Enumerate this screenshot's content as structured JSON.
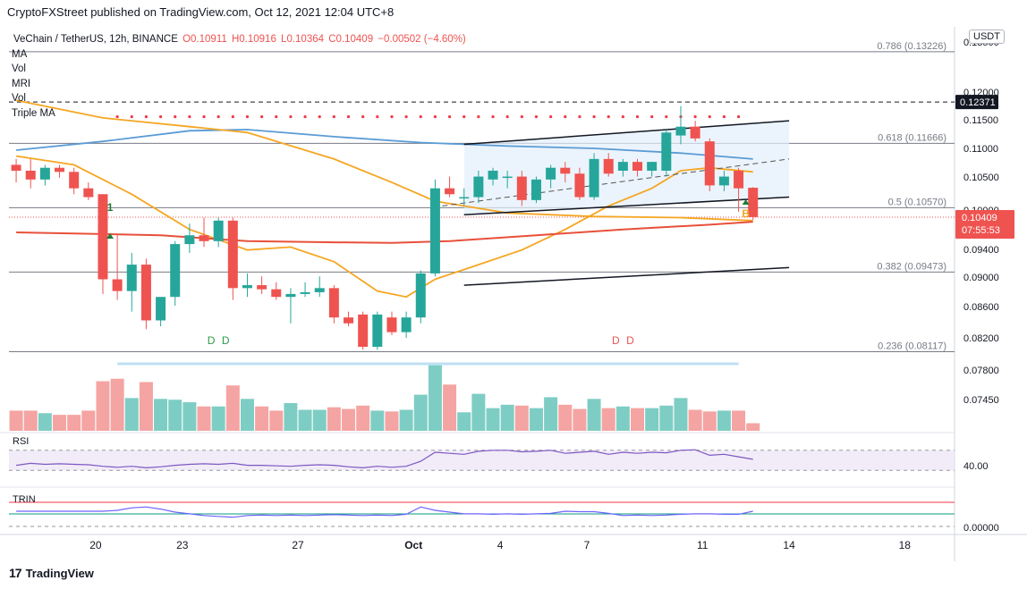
{
  "header": {
    "text": "CryptoFXStreet published on TradingView.com, Oct 12, 2021 12:04 UTC+8"
  },
  "legend": {
    "symbol": "VeChain / TetherUS, 12h, BINANCE",
    "open": "O0.10911",
    "high": "H0.10916",
    "low": "L0.10364",
    "close": "C0.10409",
    "change": "−0.00502 (−4.60%)",
    "indicators": [
      "MA",
      "Vol",
      "MRI",
      "Vol",
      "Triple MA"
    ]
  },
  "currency_button": "USDT",
  "footer": {
    "brand": "TradingView",
    "logo_glyph": "17"
  },
  "colors": {
    "up": "#26a69a",
    "down": "#ef5350",
    "ma_blue": "#5b9bd5",
    "ma_orange": "#f5a623",
    "ma_red": "#e8503a",
    "rsi": "#7e57c2"
  },
  "chart_data": {
    "type": "candlestick",
    "title": "VeChain / TetherUS, 12h, BINANCE",
    "ylim": [
      0.0683,
      0.1356
    ],
    "y_ticks": [
      "0.13500",
      "0.12000",
      "0.11500",
      "0.11000",
      "0.10500",
      "0.10000",
      "0.09400",
      "0.09000",
      "0.08600",
      "0.08200",
      "0.07800",
      "0.07450"
    ],
    "x_labels": [
      {
        "label": "20",
        "i": 5.5
      },
      {
        "label": "23",
        "i": 11.5
      },
      {
        "label": "27",
        "i": 19.5
      },
      {
        "label": "Oct",
        "i": 27.5
      },
      {
        "label": "4",
        "i": 33.5
      },
      {
        "label": "7",
        "i": 39.5
      },
      {
        "label": "11",
        "i": 47.5
      },
      {
        "label": "14",
        "i": 53.5
      },
      {
        "label": "18",
        "i": 61.5
      }
    ],
    "ohlc": [
      [
        0.113,
        0.114,
        0.11,
        0.112
      ],
      [
        0.112,
        0.114,
        0.109,
        0.1105
      ],
      [
        0.1105,
        0.113,
        0.1095,
        0.1125
      ],
      [
        0.1125,
        0.113,
        0.1108,
        0.1118
      ],
      [
        0.1118,
        0.1125,
        0.108,
        0.109
      ],
      [
        0.109,
        0.11,
        0.107,
        0.1075
      ],
      [
        0.108,
        0.108,
        0.091,
        0.0935
      ],
      [
        0.0935,
        0.101,
        0.09,
        0.0915
      ],
      [
        0.0915,
        0.098,
        0.088,
        0.096
      ],
      [
        0.096,
        0.097,
        0.085,
        0.0865
      ],
      [
        0.0865,
        0.09,
        0.0855,
        0.0905
      ],
      [
        0.0905,
        0.1,
        0.089,
        0.0995
      ],
      [
        0.0995,
        0.103,
        0.098,
        0.101
      ],
      [
        0.101,
        0.104,
        0.099,
        0.1
      ],
      [
        0.1,
        0.104,
        0.099,
        0.1035
      ],
      [
        0.1035,
        0.104,
        0.09,
        0.092
      ],
      [
        0.092,
        0.0945,
        0.0905,
        0.0925
      ],
      [
        0.0925,
        0.094,
        0.091,
        0.0918
      ],
      [
        0.0918,
        0.093,
        0.09,
        0.0905
      ],
      [
        0.0905,
        0.092,
        0.086,
        0.091
      ],
      [
        0.091,
        0.093,
        0.0905,
        0.0913
      ],
      [
        0.0913,
        0.094,
        0.0905,
        0.092
      ],
      [
        0.092,
        0.0925,
        0.086,
        0.087
      ],
      [
        0.087,
        0.088,
        0.0855,
        0.086
      ],
      [
        0.0875,
        0.088,
        0.0815,
        0.082
      ],
      [
        0.082,
        0.088,
        0.0815,
        0.0875
      ],
      [
        0.087,
        0.088,
        0.084,
        0.0845
      ],
      [
        0.0845,
        0.088,
        0.0835,
        0.087
      ],
      [
        0.087,
        0.095,
        0.086,
        0.0945
      ],
      [
        0.0945,
        0.1105,
        0.094,
        0.109
      ],
      [
        0.109,
        0.111,
        0.1075,
        0.108
      ],
      [
        0.1075,
        0.109,
        0.106,
        0.1075
      ],
      [
        0.1075,
        0.112,
        0.1065,
        0.111
      ],
      [
        0.1105,
        0.1125,
        0.1095,
        0.112
      ],
      [
        0.111,
        0.112,
        0.109,
        0.111
      ],
      [
        0.111,
        0.112,
        0.106,
        0.107
      ],
      [
        0.107,
        0.111,
        0.1065,
        0.1105
      ],
      [
        0.1105,
        0.113,
        0.109,
        0.1125
      ],
      [
        0.1125,
        0.1135,
        0.11,
        0.1115
      ],
      [
        0.1115,
        0.1125,
        0.107,
        0.1075
      ],
      [
        0.1075,
        0.115,
        0.107,
        0.114
      ],
      [
        0.114,
        0.115,
        0.111,
        0.1115
      ],
      [
        0.112,
        0.114,
        0.111,
        0.1135
      ],
      [
        0.1135,
        0.114,
        0.111,
        0.112
      ],
      [
        0.112,
        0.1135,
        0.111,
        0.1135
      ],
      [
        0.112,
        0.119,
        0.111,
        0.1185
      ],
      [
        0.118,
        0.123,
        0.1165,
        0.1195
      ],
      [
        0.1195,
        0.1205,
        0.117,
        0.1175
      ],
      [
        0.117,
        0.1175,
        0.1085,
        0.1095
      ],
      [
        0.1095,
        0.112,
        0.1085,
        0.111
      ],
      [
        0.112,
        0.1125,
        0.105,
        0.109
      ],
      [
        0.1091,
        0.1092,
        0.1036,
        0.1041
      ]
    ],
    "ma_lines": [
      {
        "name": "MA blue",
        "color": "#5b9bd5",
        "points": [
          [
            0,
            0.1155
          ],
          [
            6,
            0.117
          ],
          [
            12,
            0.1188
          ],
          [
            16,
            0.119
          ],
          [
            22,
            0.1178
          ],
          [
            28,
            0.1168
          ],
          [
            34,
            0.1162
          ],
          [
            40,
            0.1158
          ],
          [
            46,
            0.115
          ],
          [
            51,
            0.114
          ]
        ]
      },
      {
        "name": "MA orange slow",
        "color": "#f5a623",
        "points": [
          [
            0,
            0.124
          ],
          [
            6,
            0.121
          ],
          [
            12,
            0.1195
          ],
          [
            16,
            0.1185
          ],
          [
            22,
            0.114
          ],
          [
            26,
            0.11
          ],
          [
            29,
            0.1068
          ],
          [
            34,
            0.1048
          ],
          [
            40,
            0.1042
          ],
          [
            46,
            0.104
          ],
          [
            51,
            0.1035
          ]
        ]
      },
      {
        "name": "MA orange fast",
        "color": "#f5a623",
        "points": [
          [
            0,
            0.1145
          ],
          [
            4,
            0.113
          ],
          [
            8,
            0.108
          ],
          [
            12,
            0.102
          ],
          [
            16,
            0.0985
          ],
          [
            19,
            0.099
          ],
          [
            22,
            0.0965
          ],
          [
            25,
            0.0915
          ],
          [
            27,
            0.0905
          ],
          [
            29,
            0.0935
          ],
          [
            32,
            0.096
          ],
          [
            35,
            0.0985
          ],
          [
            38,
            0.102
          ],
          [
            41,
            0.106
          ],
          [
            44,
            0.109
          ],
          [
            46,
            0.112
          ],
          [
            48,
            0.1125
          ],
          [
            51,
            0.1118
          ]
        ]
      },
      {
        "name": "MA red",
        "color": "#e8503a",
        "points": [
          [
            0,
            0.1015
          ],
          [
            10,
            0.101
          ],
          [
            16,
            0.1
          ],
          [
            22,
            0.0998
          ],
          [
            26,
            0.0997
          ],
          [
            30,
            0.1
          ],
          [
            36,
            0.101
          ],
          [
            42,
            0.102
          ],
          [
            48,
            0.1028
          ],
          [
            51,
            0.1033
          ]
        ]
      }
    ],
    "trend_lines": [
      {
        "name": "channel upper",
        "from": [
          31,
          0.1165
        ],
        "to": [
          53.5,
          0.1205
        ]
      },
      {
        "name": "channel lower",
        "from": [
          31,
          0.1045
        ],
        "to": [
          53.5,
          0.1075
        ]
      },
      {
        "name": "lower support",
        "from": [
          31,
          0.0925
        ],
        "to": [
          53.5,
          0.0955
        ]
      }
    ],
    "dashed_midline": {
      "from": [
        29.5,
        0.106
      ],
      "to": [
        53.5,
        0.114
      ]
    },
    "fib_levels": [
      {
        "label": "0.786 (0.13226)",
        "value": 0.13226
      },
      {
        "label": "0.618 (0.11666)",
        "value": 0.11666
      },
      {
        "label": "0.5 (0.10570)",
        "value": 0.1057
      },
      {
        "label": "0.382 (0.09473)",
        "value": 0.09473
      },
      {
        "label": "0.236 (0.08117)",
        "value": 0.08117
      }
    ],
    "resistance": {
      "value": 0.12371,
      "label": "0.12371"
    },
    "last_price": {
      "value": 0.10409,
      "label": "0.10409",
      "countdown": "07:55:53"
    },
    "signals": [
      {
        "text": "1",
        "i": 6.5,
        "color": "#1b7d3a"
      },
      {
        "text": "B",
        "i": 50.5,
        "color": "#f5a623"
      }
    ],
    "volume_markers": [
      {
        "text": "D",
        "i": 13.5,
        "color": "#2e9a4a"
      },
      {
        "text": "D",
        "i": 14.5,
        "color": "#2e9a4a"
      },
      {
        "text": "D",
        "i": 41.5,
        "color": "#ef5350"
      },
      {
        "text": "D",
        "i": 42.5,
        "color": "#ef5350"
      }
    ],
    "volume": [
      0.24,
      0.24,
      0.21,
      0.19,
      0.19,
      0.24,
      0.59,
      0.62,
      0.39,
      0.58,
      0.38,
      0.37,
      0.34,
      0.29,
      0.29,
      0.54,
      0.38,
      0.29,
      0.24,
      0.33,
      0.25,
      0.25,
      0.28,
      0.26,
      0.3,
      0.24,
      0.23,
      0.25,
      0.43,
      0.78,
      0.55,
      0.22,
      0.44,
      0.27,
      0.31,
      0.3,
      0.27,
      0.4,
      0.31,
      0.26,
      0.38,
      0.27,
      0.29,
      0.27,
      0.27,
      0.3,
      0.39,
      0.25,
      0.23,
      0.24,
      0.24,
      0.09
    ],
    "rsi": {
      "label": "RSI",
      "tick": "40.00",
      "ylim": [
        0,
        100
      ],
      "band": [
        30,
        70
      ],
      "values": [
        40,
        44,
        42,
        43,
        42,
        41,
        38,
        36,
        38,
        35,
        37,
        40,
        42,
        43,
        42,
        44,
        40,
        40,
        39,
        38,
        40,
        41,
        40,
        37,
        35,
        38,
        36,
        38,
        48,
        66,
        64,
        62,
        68,
        70,
        70,
        67,
        68,
        70,
        64,
        66,
        68,
        62,
        66,
        64,
        66,
        65,
        70,
        71,
        60,
        62,
        57,
        52
      ]
    },
    "trin": {
      "label": "TRIN",
      "tick": "0.00000",
      "values": [
        50,
        50,
        50,
        50,
        50,
        50,
        50,
        52,
        58,
        60,
        55,
        48,
        44,
        40,
        38,
        36,
        40,
        41,
        40,
        41,
        40,
        41,
        42,
        41,
        40,
        41,
        40,
        43,
        60,
        52,
        48,
        44,
        44,
        43,
        44,
        43,
        44,
        45,
        50,
        49,
        49,
        45,
        40,
        41,
        40,
        41,
        43,
        44,
        44,
        43,
        43,
        50
      ]
    }
  }
}
